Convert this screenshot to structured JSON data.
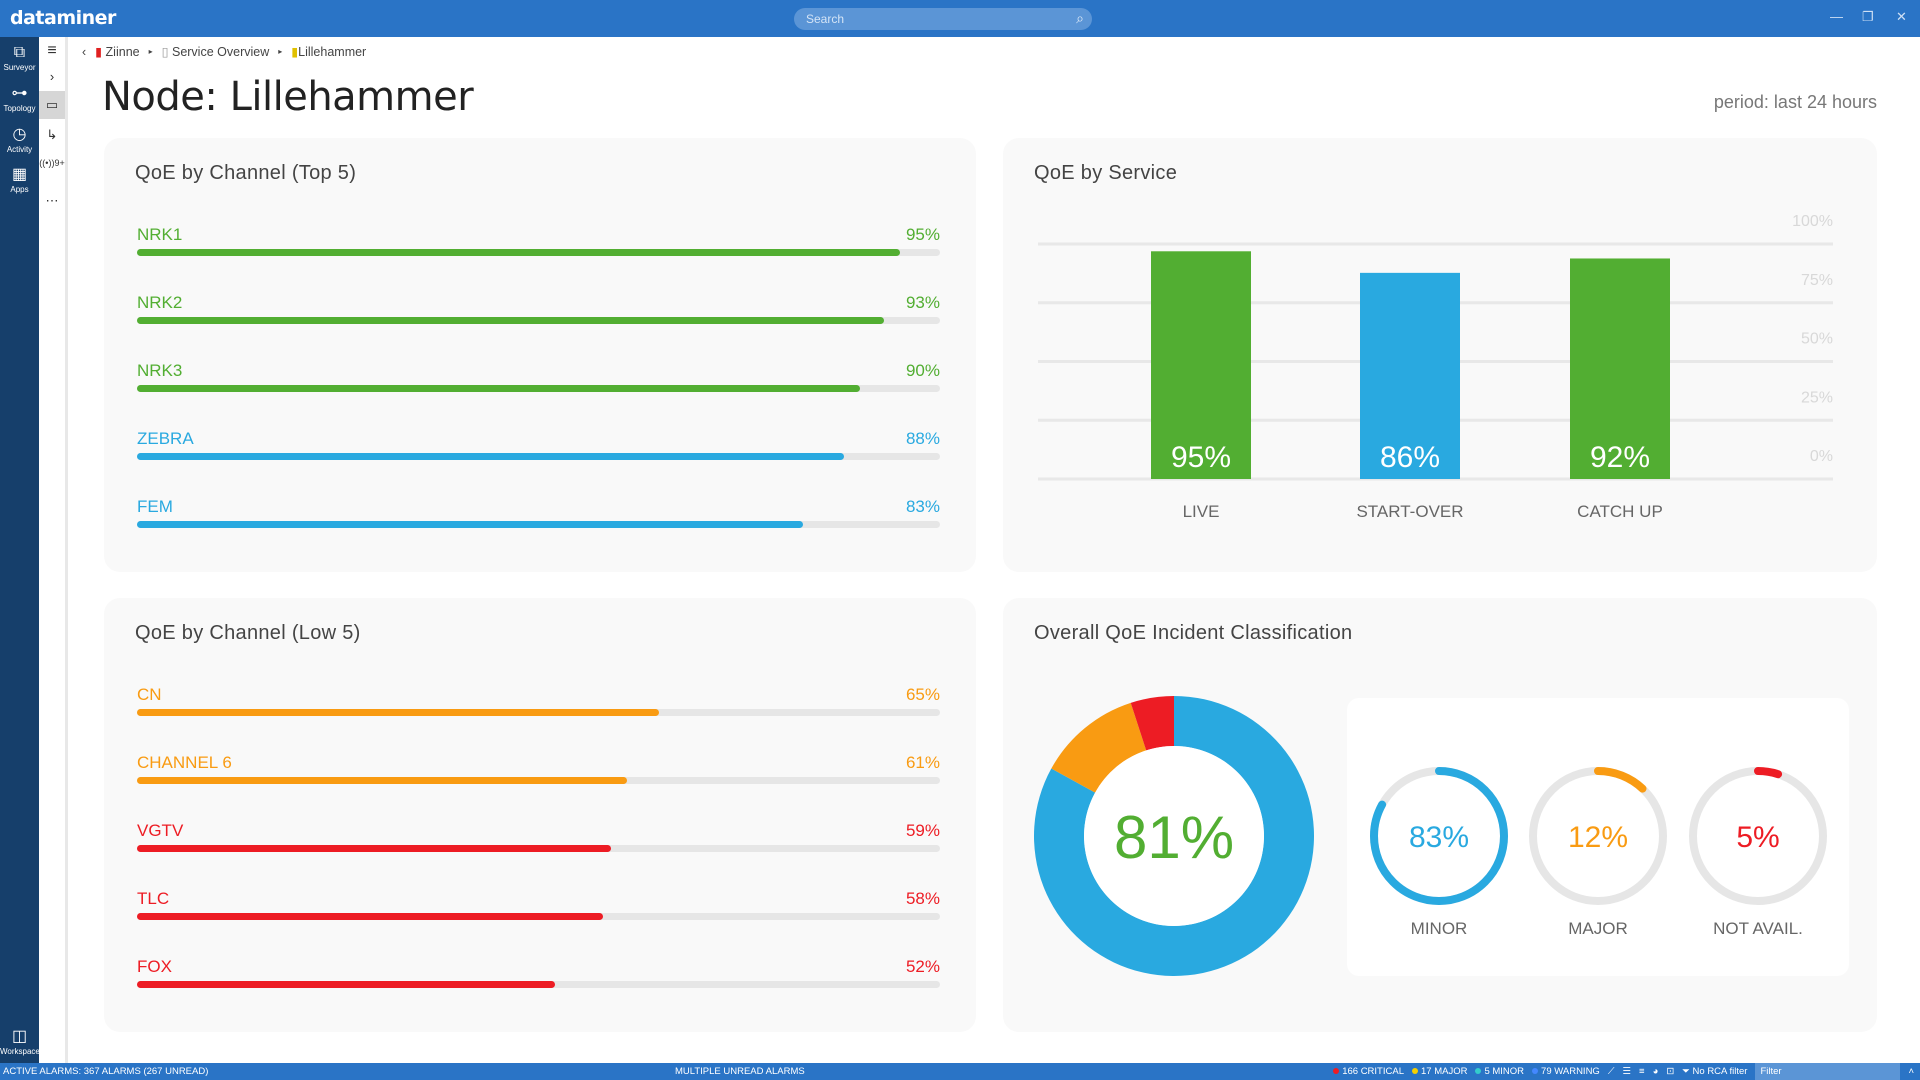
{
  "app": {
    "name": "dataminer",
    "search_placeholder": "Search"
  },
  "rail": [
    {
      "label": "Surveyor",
      "icon": "surveyor-icon",
      "glyph": "⧉"
    },
    {
      "label": "Topology",
      "icon": "topology-icon",
      "glyph": "⊶"
    },
    {
      "label": "Activity",
      "icon": "activity-icon",
      "glyph": "◷"
    },
    {
      "label": "Apps",
      "icon": "apps-icon",
      "glyph": "▦"
    }
  ],
  "workspace_label": "Workspace",
  "side_badge": "9+",
  "breadcrumb": [
    "Ziinne",
    "Service Overview",
    "Lillehammer"
  ],
  "page": {
    "title": "Node: Lillehammer",
    "period": "period: last 24 hours"
  },
  "colors": {
    "green": "#52ae32",
    "blue": "#29a9e0",
    "orange": "#f99b12",
    "red": "#ed1c24",
    "topbar": "#2a74c6"
  },
  "top5": {
    "title": "QoE by Channel (Top 5)",
    "items": [
      {
        "label": "NRK1",
        "value": "95%",
        "pct": 95,
        "color": "green"
      },
      {
        "label": "NRK2",
        "value": "93%",
        "pct": 93,
        "color": "green"
      },
      {
        "label": "NRK3",
        "value": "90%",
        "pct": 90,
        "color": "green"
      },
      {
        "label": "ZEBRA",
        "value": "88%",
        "pct": 88,
        "color": "blue"
      },
      {
        "label": "FEM",
        "value": "83%",
        "pct": 83,
        "color": "blue"
      }
    ]
  },
  "low5": {
    "title": "QoE by Channel (Low 5)",
    "items": [
      {
        "label": "CN",
        "value": "65%",
        "pct": 65,
        "color": "orange"
      },
      {
        "label": "CHANNEL 6",
        "value": "61%",
        "pct": 61,
        "color": "orange"
      },
      {
        "label": "VGTV",
        "value": "59%",
        "pct": 59,
        "color": "red"
      },
      {
        "label": "TLC",
        "value": "58%",
        "pct": 58,
        "color": "red"
      },
      {
        "label": "FOX",
        "value": "52%",
        "pct": 52,
        "color": "red"
      }
    ]
  },
  "chart_data": [
    {
      "type": "bar",
      "title": "QoE by Service",
      "categories": [
        "LIVE",
        "START-OVER",
        "CATCH UP"
      ],
      "values": [
        95,
        86,
        92
      ],
      "data_labels": [
        "95%",
        "86%",
        "92%"
      ],
      "bar_colors": [
        "green",
        "blue",
        "green"
      ],
      "yticks": [
        "0%",
        "25%",
        "50%",
        "75%",
        "100%"
      ],
      "ylim": [
        0,
        100
      ],
      "grid": true
    },
    {
      "type": "pie",
      "title": "Overall QoE Incident Classification",
      "center_label": "81%",
      "slices": [
        {
          "name": "MINOR",
          "value": 83,
          "color": "blue"
        },
        {
          "name": "MAJOR",
          "value": 12,
          "color": "orange"
        },
        {
          "name": "NOT AVAIL.",
          "value": 5,
          "color": "red"
        }
      ]
    }
  ],
  "gauges": [
    {
      "label": "MINOR",
      "value": "83%",
      "pct": 83,
      "color": "blue"
    },
    {
      "label": "MAJOR",
      "value": "12%",
      "pct": 12,
      "color": "orange"
    },
    {
      "label": "NOT AVAIL.",
      "value": "5%",
      "pct": 5,
      "color": "red"
    }
  ],
  "status": {
    "alarms": "ACTIVE ALARMS: 367 ALARMS (267 UNREAD)",
    "unread": "MULTIPLE UNREAD ALARMS",
    "critical": "166 CRITICAL",
    "major": "17 MAJOR",
    "minor": "5 MINOR",
    "warning": "79 WARNING",
    "rca": "No RCA filter",
    "filter_placeholder": "Filter"
  }
}
